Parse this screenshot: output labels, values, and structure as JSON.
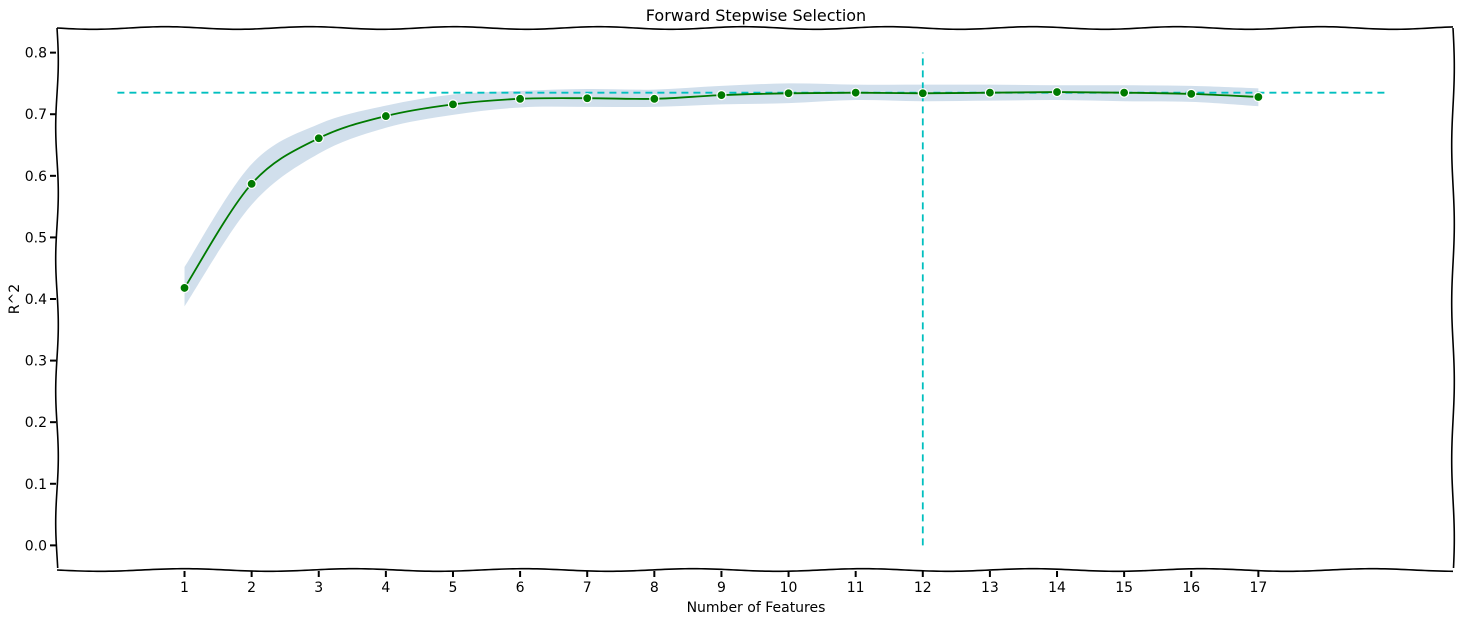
{
  "chart_data": {
    "type": "line",
    "title": "Forward Stepwise Selection",
    "xlabel": "Number of Features",
    "ylabel": "R^2",
    "x": [
      1,
      2,
      3,
      4,
      5,
      6,
      7,
      8,
      9,
      10,
      11,
      12,
      13,
      14,
      15,
      16,
      17
    ],
    "x_ticks": [
      "1",
      "2",
      "3",
      "4",
      "5",
      "6",
      "7",
      "8",
      "9",
      "10",
      "11",
      "12",
      "13",
      "14",
      "15",
      "16",
      "17"
    ],
    "y_ticks": [
      "0.0",
      "0.1",
      "0.2",
      "0.3",
      "0.4",
      "0.5",
      "0.6",
      "0.7",
      "0.8"
    ],
    "xlim": [
      -0.9,
      19.9
    ],
    "ylim": [
      -0.04,
      0.84
    ],
    "series": [
      {
        "values": [
          0.418,
          0.587,
          0.661,
          0.697,
          0.716,
          0.725,
          0.726,
          0.725,
          0.731,
          0.734,
          0.735,
          0.734,
          0.735,
          0.736,
          0.735,
          0.733,
          0.728
        ],
        "band_low": [
          0.388,
          0.553,
          0.636,
          0.678,
          0.699,
          0.711,
          0.712,
          0.712,
          0.716,
          0.718,
          0.723,
          0.721,
          0.722,
          0.723,
          0.721,
          0.72,
          0.713
        ],
        "band_high": [
          0.452,
          0.619,
          0.684,
          0.714,
          0.732,
          0.738,
          0.741,
          0.74,
          0.746,
          0.75,
          0.748,
          0.748,
          0.748,
          0.747,
          0.747,
          0.746,
          0.742
        ],
        "color": "#007a00",
        "band_color": "#c9d9e9"
      }
    ],
    "reference_lines": [
      {
        "orientation": "horizontal",
        "value": 0.735,
        "color": "#00bfbf",
        "style": "dashed"
      },
      {
        "orientation": "vertical",
        "value": 12,
        "color": "#00bfbf",
        "style": "dashed"
      }
    ],
    "grid": false,
    "legend": "none"
  }
}
